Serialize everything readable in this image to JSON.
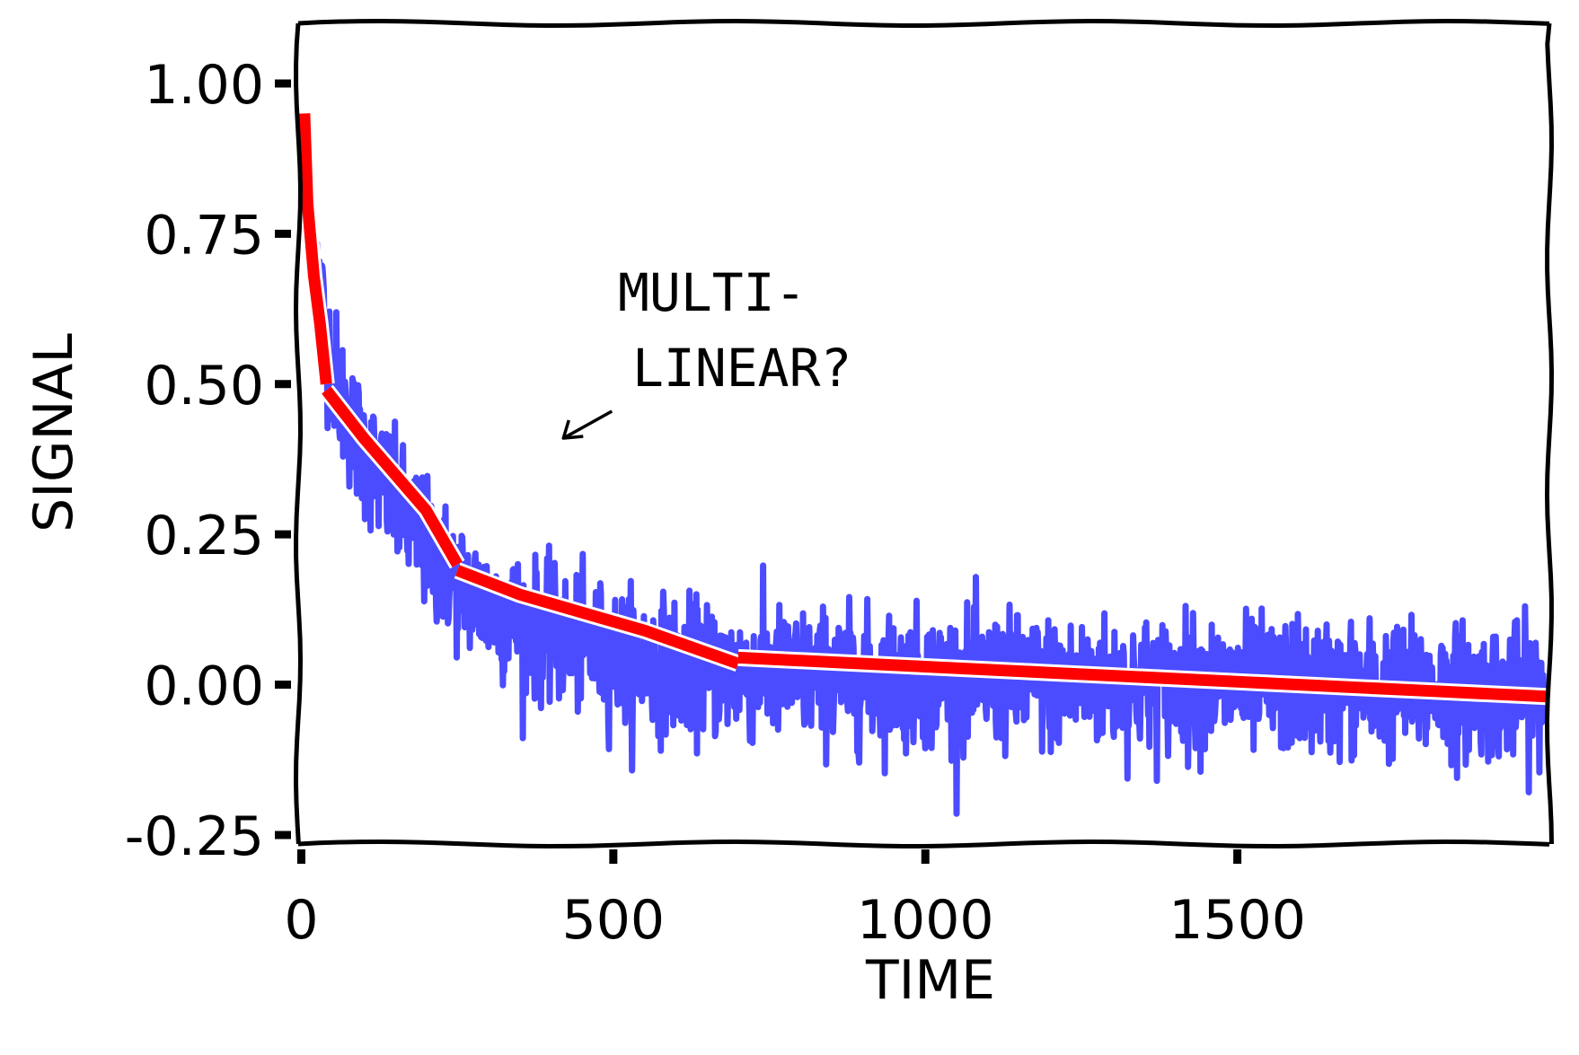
{
  "chart_data": {
    "type": "line",
    "style": "xkcd",
    "title": "",
    "xlabel": "TIME",
    "ylabel": "SIGNAL",
    "xlim": [
      -5,
      2000
    ],
    "ylim": [
      -0.265,
      1.1
    ],
    "xticks": [
      0,
      500,
      1000,
      1500
    ],
    "xtick_labels": [
      "0",
      "500",
      "1000",
      "1500"
    ],
    "yticks": [
      1.0,
      0.75,
      0.5,
      0.25,
      0.0,
      -0.25
    ],
    "ytick_labels": [
      "1.00",
      "0.75",
      "0.50",
      "0.25",
      "0.00",
      "-0.25"
    ],
    "grid": false,
    "legend": "none",
    "series": [
      {
        "role": "noisy-signal",
        "color": "#4b4bff",
        "x": [
          0,
          20,
          40,
          60,
          80,
          100,
          150,
          200,
          250,
          300,
          400,
          500,
          600,
          700,
          800,
          900,
          1000,
          1100,
          1200,
          1300,
          1400,
          1500,
          1600,
          1700,
          1800,
          1900,
          2000
        ],
        "y": [
          0.95,
          0.72,
          0.58,
          0.49,
          0.43,
          0.39,
          0.3,
          0.23,
          0.17,
          0.13,
          0.08,
          0.05,
          0.03,
          0.02,
          0.015,
          0.01,
          0.008,
          0.005,
          0.003,
          0.001,
          0.0,
          -0.002,
          -0.005,
          -0.007,
          -0.01,
          -0.012,
          -0.015
        ],
        "noise_std": 0.055
      },
      {
        "role": "piecewise-fit",
        "color": "#ff0000",
        "segments": [
          {
            "x": [
              5,
              10,
              20,
              30,
              40
            ],
            "y": [
              0.95,
              0.8,
              0.68,
              0.6,
              0.5
            ]
          },
          {
            "x": [
              40,
              100,
              200,
              250
            ],
            "y": [
              0.49,
              0.41,
              0.29,
              0.2
            ]
          },
          {
            "x": [
              250,
              350,
              450,
              550,
              700
            ],
            "y": [
              0.19,
              0.15,
              0.12,
              0.09,
              0.035
            ]
          },
          {
            "x": [
              700,
              800,
              900,
              1000,
              1200,
              1400,
              1600,
              1800,
              2000
            ],
            "y": [
              0.045,
              0.04,
              0.035,
              0.03,
              0.02,
              0.01,
              0.0,
              -0.01,
              -0.02
            ]
          }
        ]
      }
    ],
    "annotations": [
      {
        "text_lines": [
          "MULTI-",
          "LINEAR?"
        ],
        "arrow_to": {
          "x": 420,
          "y": 0.41
        }
      }
    ]
  }
}
